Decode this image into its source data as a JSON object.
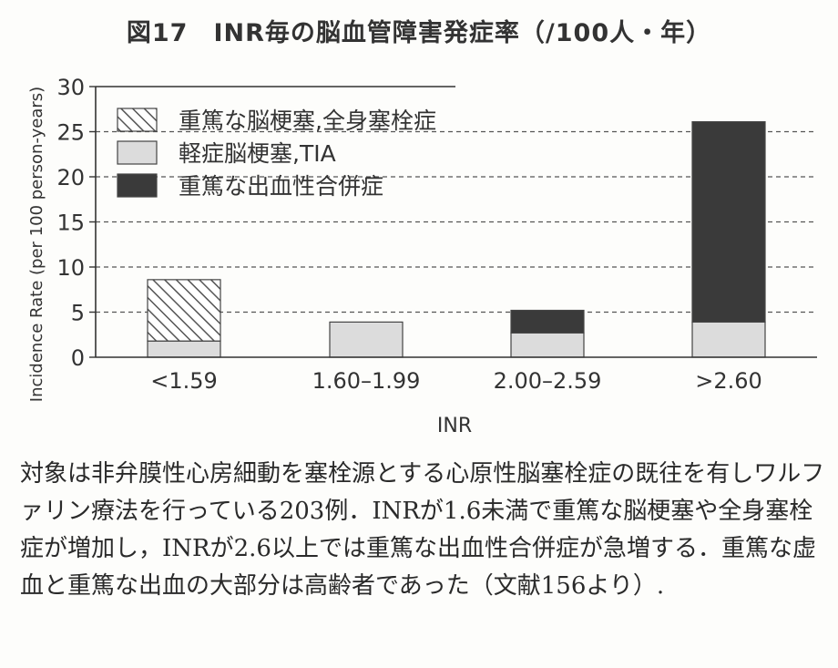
{
  "figure": {
    "title": "図17　INR毎の脳血管障害発症率（/100人・年）",
    "caption": "対象は非弁膜性心房細動を塞栓源とする心原性脳塞栓症の既往を有しワルファリン療法を行っている203例．INRが1.6未満で重篤な脳梗塞や全身塞栓症が増加し，INRが2.6以上では重篤な出血性合併症が急増する．重篤な虚血と重篤な出血の大部分は高齢者であった（文献156より）."
  },
  "chart_data": {
    "type": "bar",
    "stacked": true,
    "categories": [
      "<1.59",
      "1.60–1.99",
      "2.00–2.59",
      ">2.60"
    ],
    "series": [
      {
        "name": "軽症脳梗塞,TIA",
        "values": [
          1.8,
          3.9,
          2.7,
          3.9
        ],
        "color": "#dcdcdc",
        "pattern": "solid-light"
      },
      {
        "name": "重篤な脳梗塞,全身塞栓症",
        "values": [
          6.8,
          0,
          0,
          0
        ],
        "color": "#ffffff",
        "pattern": "hatched"
      },
      {
        "name": "重篤な出血性合併症",
        "values": [
          0,
          0,
          2.5,
          22.2
        ],
        "color": "#3a3a3a",
        "pattern": "solid-dark"
      }
    ],
    "legend_order": [
      "重篤な脳梗塞,全身塞栓症",
      "軽症脳梗塞,TIA",
      "重篤な出血性合併症"
    ],
    "legend_placement": "top-left",
    "xlabel": "INR",
    "ylabel": "Incidence Rate (per 100 person-years)",
    "ylim": [
      0,
      30
    ],
    "yticks": [
      0,
      5,
      10,
      15,
      20,
      25,
      30
    ],
    "grid": "dashed-horizontal"
  }
}
